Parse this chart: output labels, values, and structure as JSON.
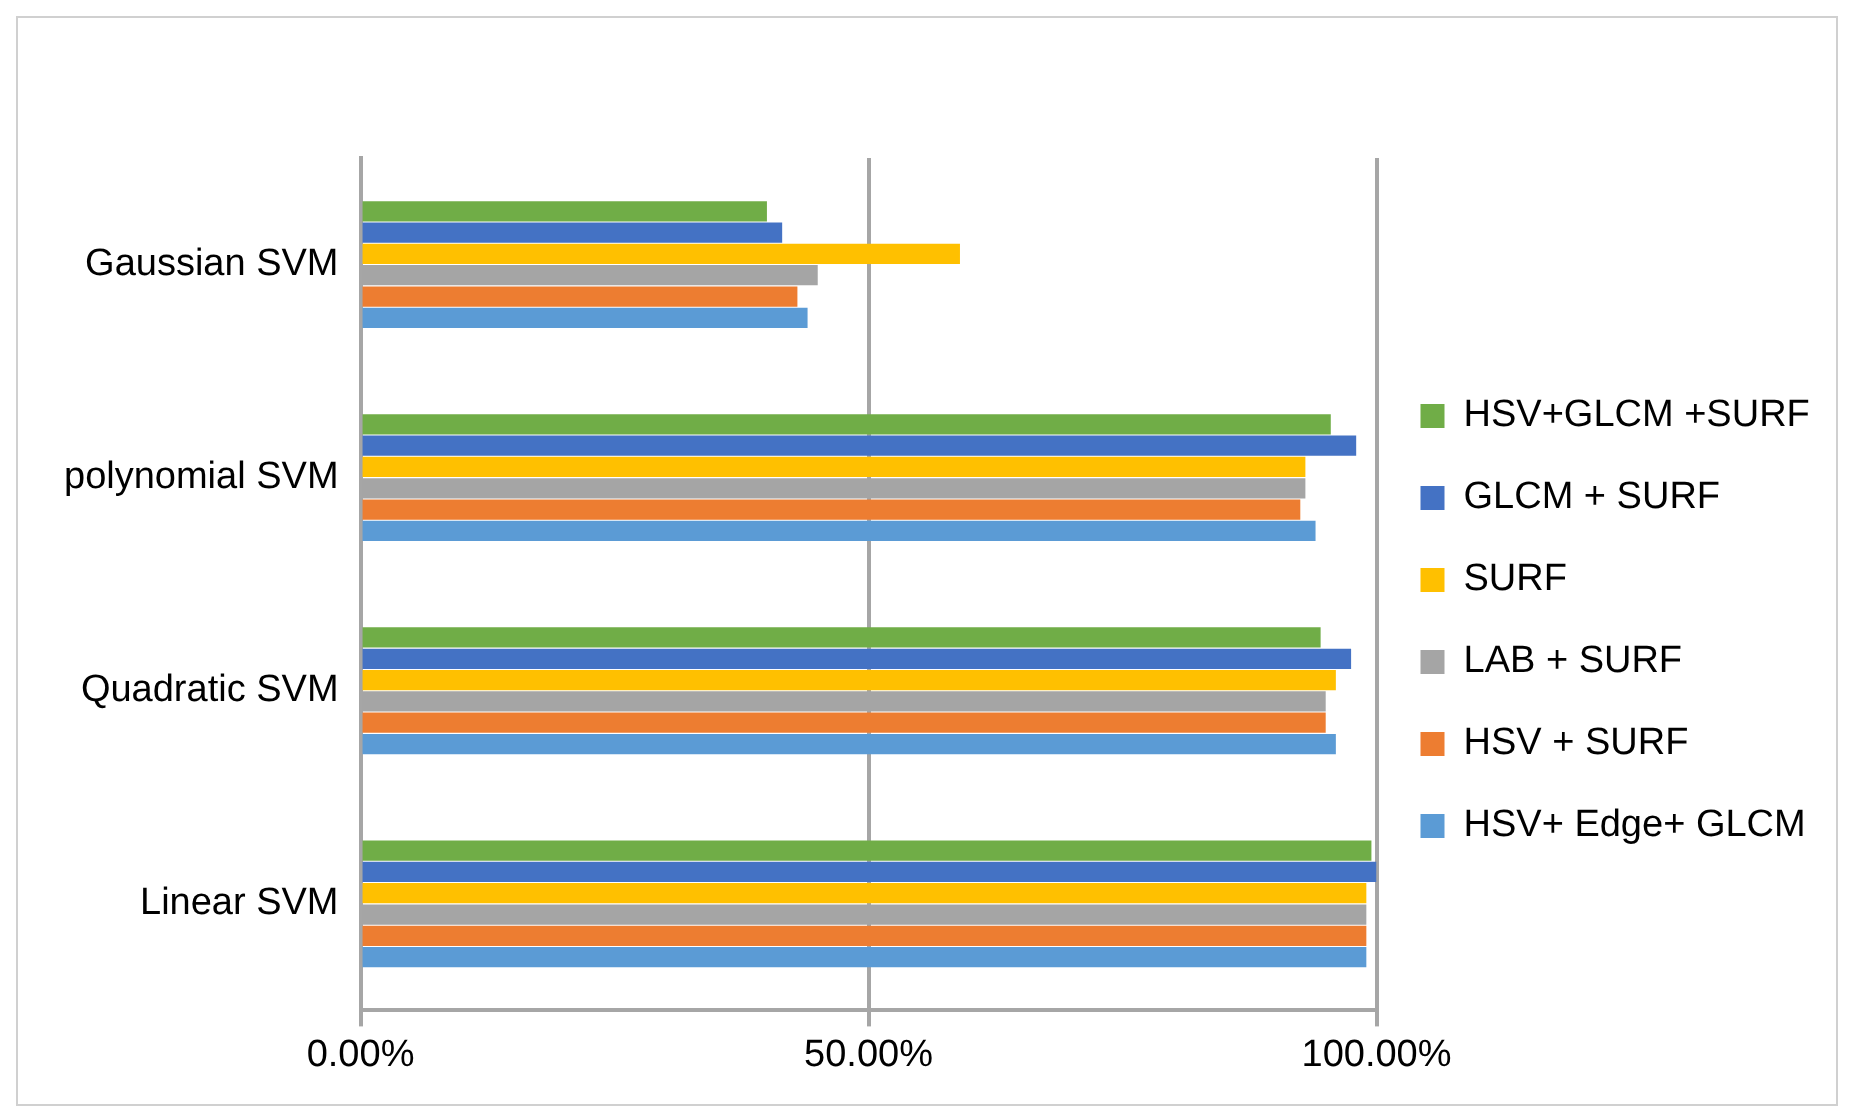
{
  "chart_data": {
    "type": "bar",
    "orientation": "horizontal",
    "categories": [
      "Gaussian SVM",
      "polynomial SVM",
      "Quadratic SVM",
      "Linear SVM"
    ],
    "series": [
      {
        "name": "HSV+GLCM +SURF",
        "color": "#70ad47",
        "values": [
          40,
          95.5,
          94.5,
          99.5
        ]
      },
      {
        "name": "GLCM + SURF",
        "color": "#4472c4",
        "values": [
          41.5,
          98,
          97.5,
          100
        ]
      },
      {
        "name": "SURF",
        "color": "#ffc000",
        "values": [
          59,
          93,
          96,
          99
        ]
      },
      {
        "name": "LAB + SURF",
        "color": "#a5a5a5",
        "values": [
          45,
          93,
          95,
          99
        ]
      },
      {
        "name": "HSV + SURF",
        "color": "#ed7d31",
        "values": [
          43,
          92.5,
          95,
          99
        ]
      },
      {
        "name": "HSV+ Edge+ GLCM",
        "color": "#5b9bd5",
        "values": [
          44,
          94,
          96,
          99
        ]
      }
    ],
    "xlim": [
      0,
      100
    ],
    "xticks": [
      {
        "value": 0,
        "label": "0.00%"
      },
      {
        "value": 50,
        "label": "50.00%"
      },
      {
        "value": 100,
        "label": "100.00%"
      }
    ],
    "grid": "x",
    "legend": "right"
  }
}
